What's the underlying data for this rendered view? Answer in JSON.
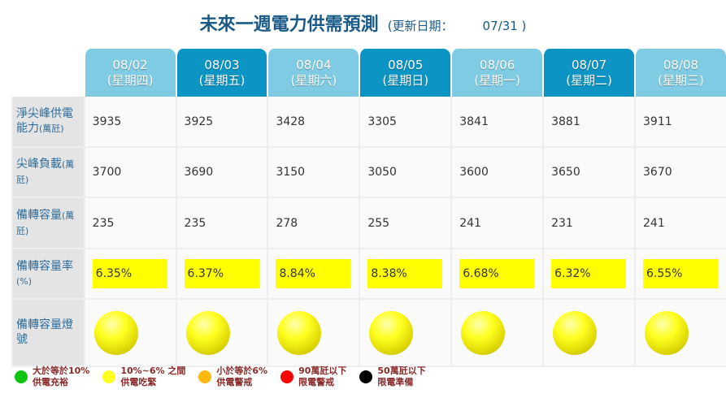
{
  "title": {
    "main": "未來一週電力供需預測",
    "updated_label": "(更新日期：",
    "updated_date": "07/31 )"
  },
  "days": [
    {
      "date": "08/02",
      "weekday": "(星期四)",
      "style": "light",
      "capacity": "3935",
      "peak_load": "3700",
      "reserve": "235",
      "reserve_rate": "6.35%",
      "light": "yellow"
    },
    {
      "date": "08/03",
      "weekday": "(星期五)",
      "style": "dark",
      "capacity": "3925",
      "peak_load": "3690",
      "reserve": "235",
      "reserve_rate": "6.37%",
      "light": "yellow"
    },
    {
      "date": "08/04",
      "weekday": "(星期六)",
      "style": "light",
      "capacity": "3428",
      "peak_load": "3150",
      "reserve": "278",
      "reserve_rate": "8.84%",
      "light": "yellow"
    },
    {
      "date": "08/05",
      "weekday": "(星期日)",
      "style": "dark",
      "capacity": "3305",
      "peak_load": "3050",
      "reserve": "255",
      "reserve_rate": "8.38%",
      "light": "yellow"
    },
    {
      "date": "08/06",
      "weekday": "(星期一)",
      "style": "light",
      "capacity": "3841",
      "peak_load": "3600",
      "reserve": "241",
      "reserve_rate": "6.68%",
      "light": "yellow"
    },
    {
      "date": "08/07",
      "weekday": "(星期二)",
      "style": "dark",
      "capacity": "3881",
      "peak_load": "3650",
      "reserve": "231",
      "reserve_rate": "6.32%",
      "light": "yellow"
    },
    {
      "date": "08/08",
      "weekday": "(星期三)",
      "style": "light",
      "capacity": "3911",
      "peak_load": "3670",
      "reserve": "241",
      "reserve_rate": "6.55%",
      "light": "yellow"
    }
  ],
  "rows": {
    "capacity": {
      "label": "淨尖峰供電能力",
      "unit": "(萬瓩)"
    },
    "peak_load": {
      "label": "尖峰負載",
      "unit": "(萬瓩)"
    },
    "reserve": {
      "label": "備轉容量",
      "unit": "(萬瓩)"
    },
    "reserve_rate": {
      "label": "備轉容量率",
      "unit": "(%)"
    },
    "light": {
      "label": "備轉容量燈號",
      "unit": ""
    }
  },
  "legend": [
    {
      "color": "#11c411",
      "line1": "大於等於10%",
      "line2": "供電充裕"
    },
    {
      "color": "#ffff22",
      "line1": "10%~6% 之間",
      "line2": "供電吃緊"
    },
    {
      "color": "#ffb90f",
      "line1": "小於等於6%",
      "line2": "供電警戒"
    },
    {
      "color": "#ff0000",
      "line1": "90萬瓩以下",
      "line2": "限電警戒"
    },
    {
      "color": "#000000",
      "line1": "50萬瓩以下",
      "line2": "限電準備"
    }
  ]
}
